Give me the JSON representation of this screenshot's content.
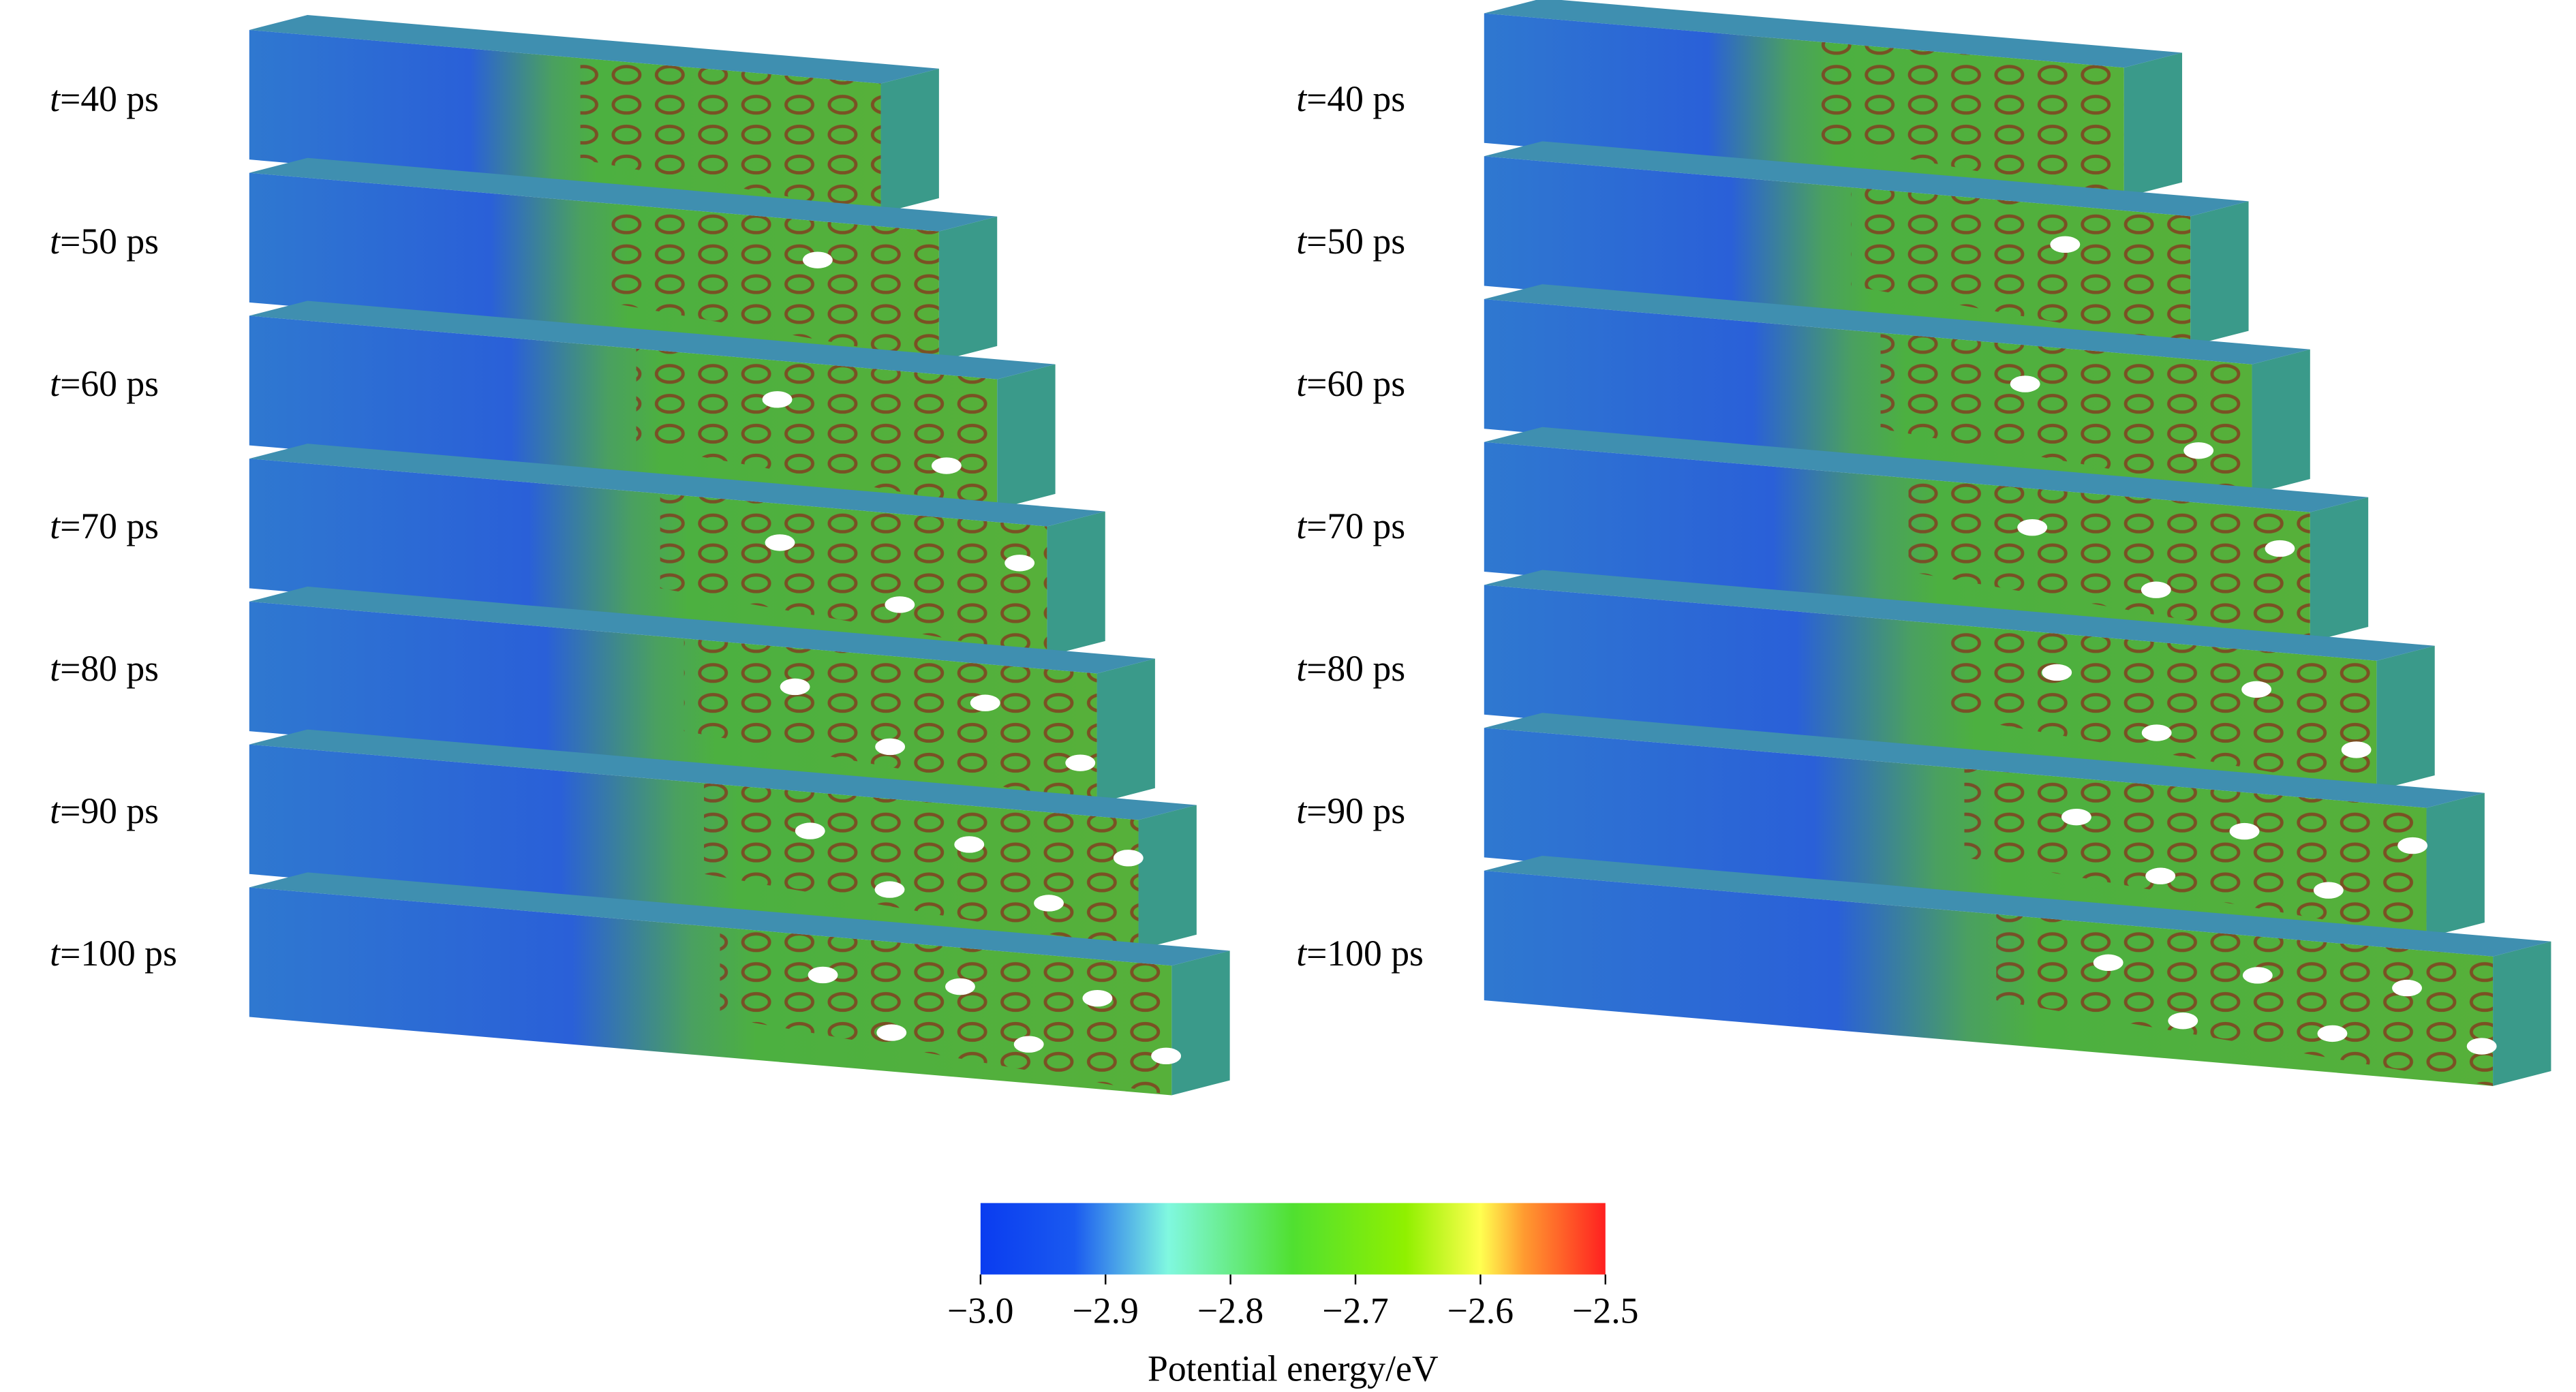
{
  "panels": [
    {
      "time_labels": [
        {
          "var": "t",
          "value": "=40 ps"
        },
        {
          "var": "t",
          "value": "=50 ps"
        },
        {
          "var": "t",
          "value": "=60 ps"
        },
        {
          "var": "t",
          "value": "=70 ps"
        },
        {
          "var": "t",
          "value": "=80 ps"
        },
        {
          "var": "t",
          "value": "=90 ps"
        },
        {
          "var": "t",
          "value": "=100 ps"
        }
      ]
    },
    {
      "time_labels": [
        {
          "var": "t",
          "value": "=40 ps"
        },
        {
          "var": "t",
          "value": "=50 ps"
        },
        {
          "var": "t",
          "value": "=60 ps"
        },
        {
          "var": "t",
          "value": "=70 ps"
        },
        {
          "var": "t",
          "value": "=80 ps"
        },
        {
          "var": "t",
          "value": "=90 ps"
        },
        {
          "var": "t",
          "value": "=100 ps"
        }
      ]
    }
  ],
  "colorbar": {
    "label": "Potential energy/eV",
    "lim": [
      -3.0,
      -2.5
    ],
    "ticks": [
      {
        "value": -3.0,
        "label": "−3.0"
      },
      {
        "value": -2.9,
        "label": "−2.9"
      },
      {
        "value": -2.8,
        "label": "−2.8"
      },
      {
        "value": -2.7,
        "label": "−2.7"
      },
      {
        "value": -2.6,
        "label": "−2.6"
      },
      {
        "value": -2.5,
        "label": "−2.5"
      }
    ]
  }
}
